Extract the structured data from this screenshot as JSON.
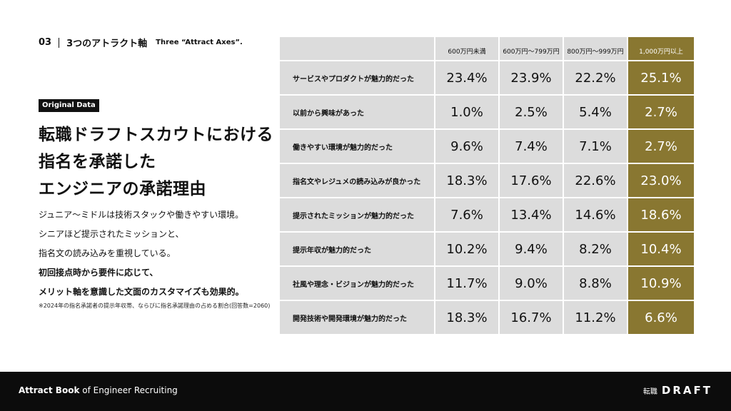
{
  "breadcrumb": {
    "number": "03",
    "title": "3つのアトラクト軸",
    "subtitle_en": "Three “Attract Axes”."
  },
  "badge": "Original Data",
  "title_lines": [
    "転職ドラフトスカウトにおける",
    "指名を承諾した",
    "エンジニアの承諾理由"
  ],
  "description": {
    "lines": [
      "ジュニア〜ミドルは技術スタックや働きやすい環境。",
      "シニアほど提示されたミッションと、",
      "指名文の読み込みを重視している。"
    ],
    "bold_lines": [
      "初回接点時から要件に応じて、",
      "メリット軸を意識した文面のカスタマイズも効果的。"
    ]
  },
  "footnote": "※2024年の指名承諾者の提示年収帯、ならびに指名承諾理由の占める割合(回答数=2060)",
  "table": {
    "headers": [
      "600万円未満",
      "600万円〜799万円",
      "800万円〜999万円",
      "1,000万円以上"
    ],
    "rows": [
      {
        "label": "サービスやプロダクトが魅力的だった",
        "values": [
          "23.4%",
          "23.9%",
          "22.2%",
          "25.1%"
        ]
      },
      {
        "label": "以前から興味があった",
        "values": [
          "1.0%",
          "2.5%",
          "5.4%",
          "2.7%"
        ]
      },
      {
        "label": "働きやすい環境が魅力的だった",
        "values": [
          "9.6%",
          "7.4%",
          "7.1%",
          "2.7%"
        ]
      },
      {
        "label": "指名文やレジュメの読み込みが良かった",
        "values": [
          "18.3%",
          "17.6%",
          "22.6%",
          "23.0%"
        ]
      },
      {
        "label": "提示されたミッションが魅力的だった",
        "values": [
          "7.6%",
          "13.4%",
          "14.6%",
          "18.6%"
        ]
      },
      {
        "label": "提示年収が魅力的だった",
        "values": [
          "10.2%",
          "9.4%",
          "8.2%",
          "10.4%"
        ]
      },
      {
        "label": "社風や理念・ビジョンが魅力的だった",
        "values": [
          "11.7%",
          "9.0%",
          "8.8%",
          "10.9%"
        ]
      },
      {
        "label": "開発技術や開発環境が魅力的だった",
        "values": [
          "18.3%",
          "16.7%",
          "11.2%",
          "6.6%"
        ]
      }
    ]
  },
  "footer": {
    "brand_bold": "Attract Book",
    "brand_rest": " of Engineer Recruiting",
    "logo_jp": "転職",
    "logo_en": "DRAFT"
  },
  "colors": {
    "accent": "#897731",
    "cell": "#dcdcdc",
    "footer": "#0c0c0c"
  }
}
